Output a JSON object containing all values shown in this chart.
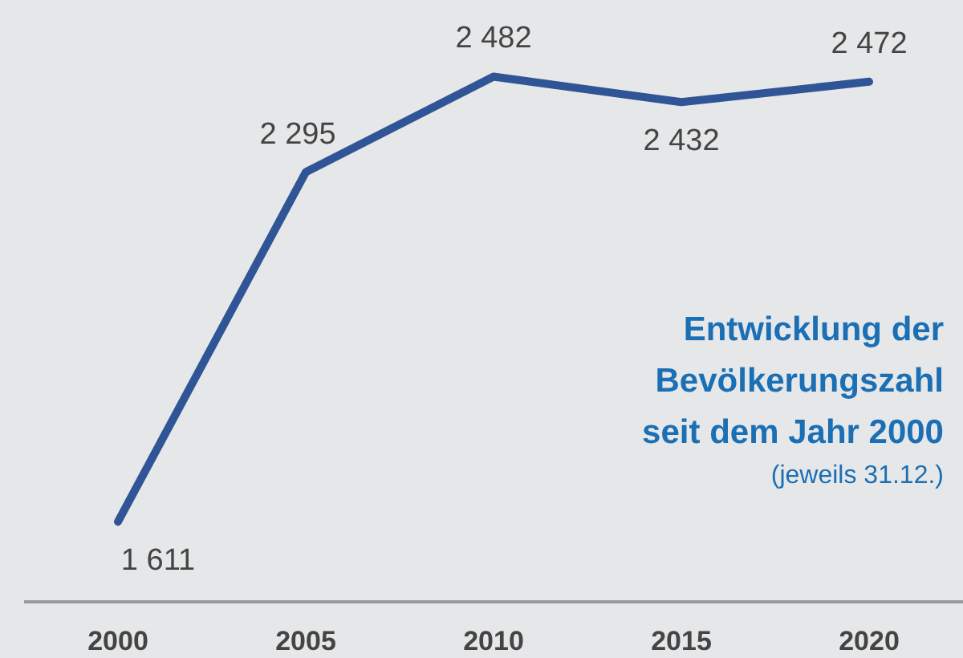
{
  "chart_data": {
    "type": "line",
    "title": "Entwicklung der\nBevölkerungszahl\nseit dem Jahr 2000",
    "subtitle": "(jeweils 31.12.)",
    "categories": [
      "2000",
      "2005",
      "2010",
      "2015",
      "2020"
    ],
    "series": [
      {
        "color": "#2f5597",
        "values": [
          1611,
          2295,
          2482,
          2432,
          2472
        ],
        "value_labels": [
          "1 611",
          "2 295",
          "2 482",
          "2 432",
          "2 472"
        ]
      }
    ],
    "marker": "none",
    "line_style": "solid"
  }
}
